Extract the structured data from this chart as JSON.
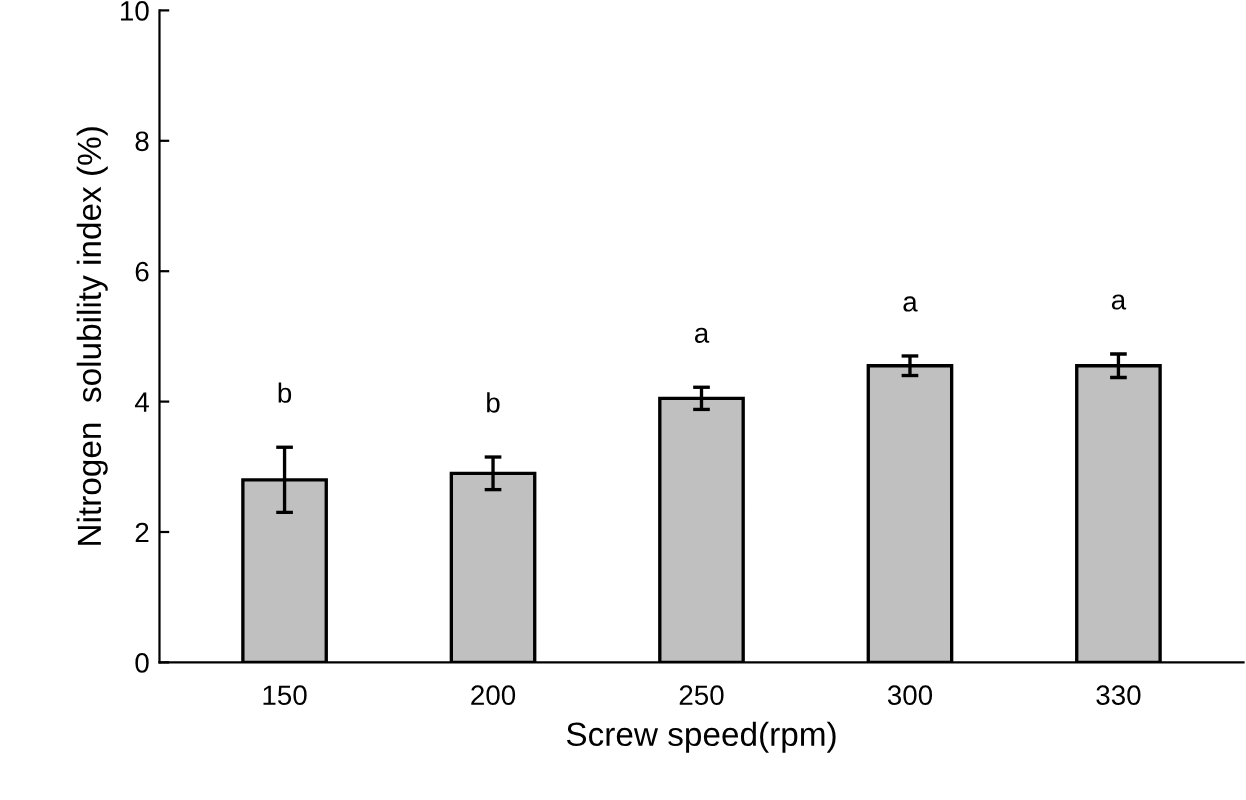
{
  "chart_data": {
    "type": "bar",
    "xlabel": "Screw speed(rpm)",
    "ylabel": "Nitrogen  solubility index (%)",
    "categories": [
      "150",
      "200",
      "250",
      "300",
      "330"
    ],
    "values": [
      2.8,
      2.9,
      4.05,
      4.55,
      4.55
    ],
    "errors": [
      0.5,
      0.25,
      0.17,
      0.15,
      0.18
    ],
    "color": "#c0c0c0",
    "ylim": [
      0,
      10
    ],
    "yticks": [
      0,
      2,
      4,
      6,
      8,
      10
    ],
    "grid": false,
    "legend": false,
    "annotations": [
      "b",
      "b",
      "a",
      "a",
      "a"
    ]
  }
}
